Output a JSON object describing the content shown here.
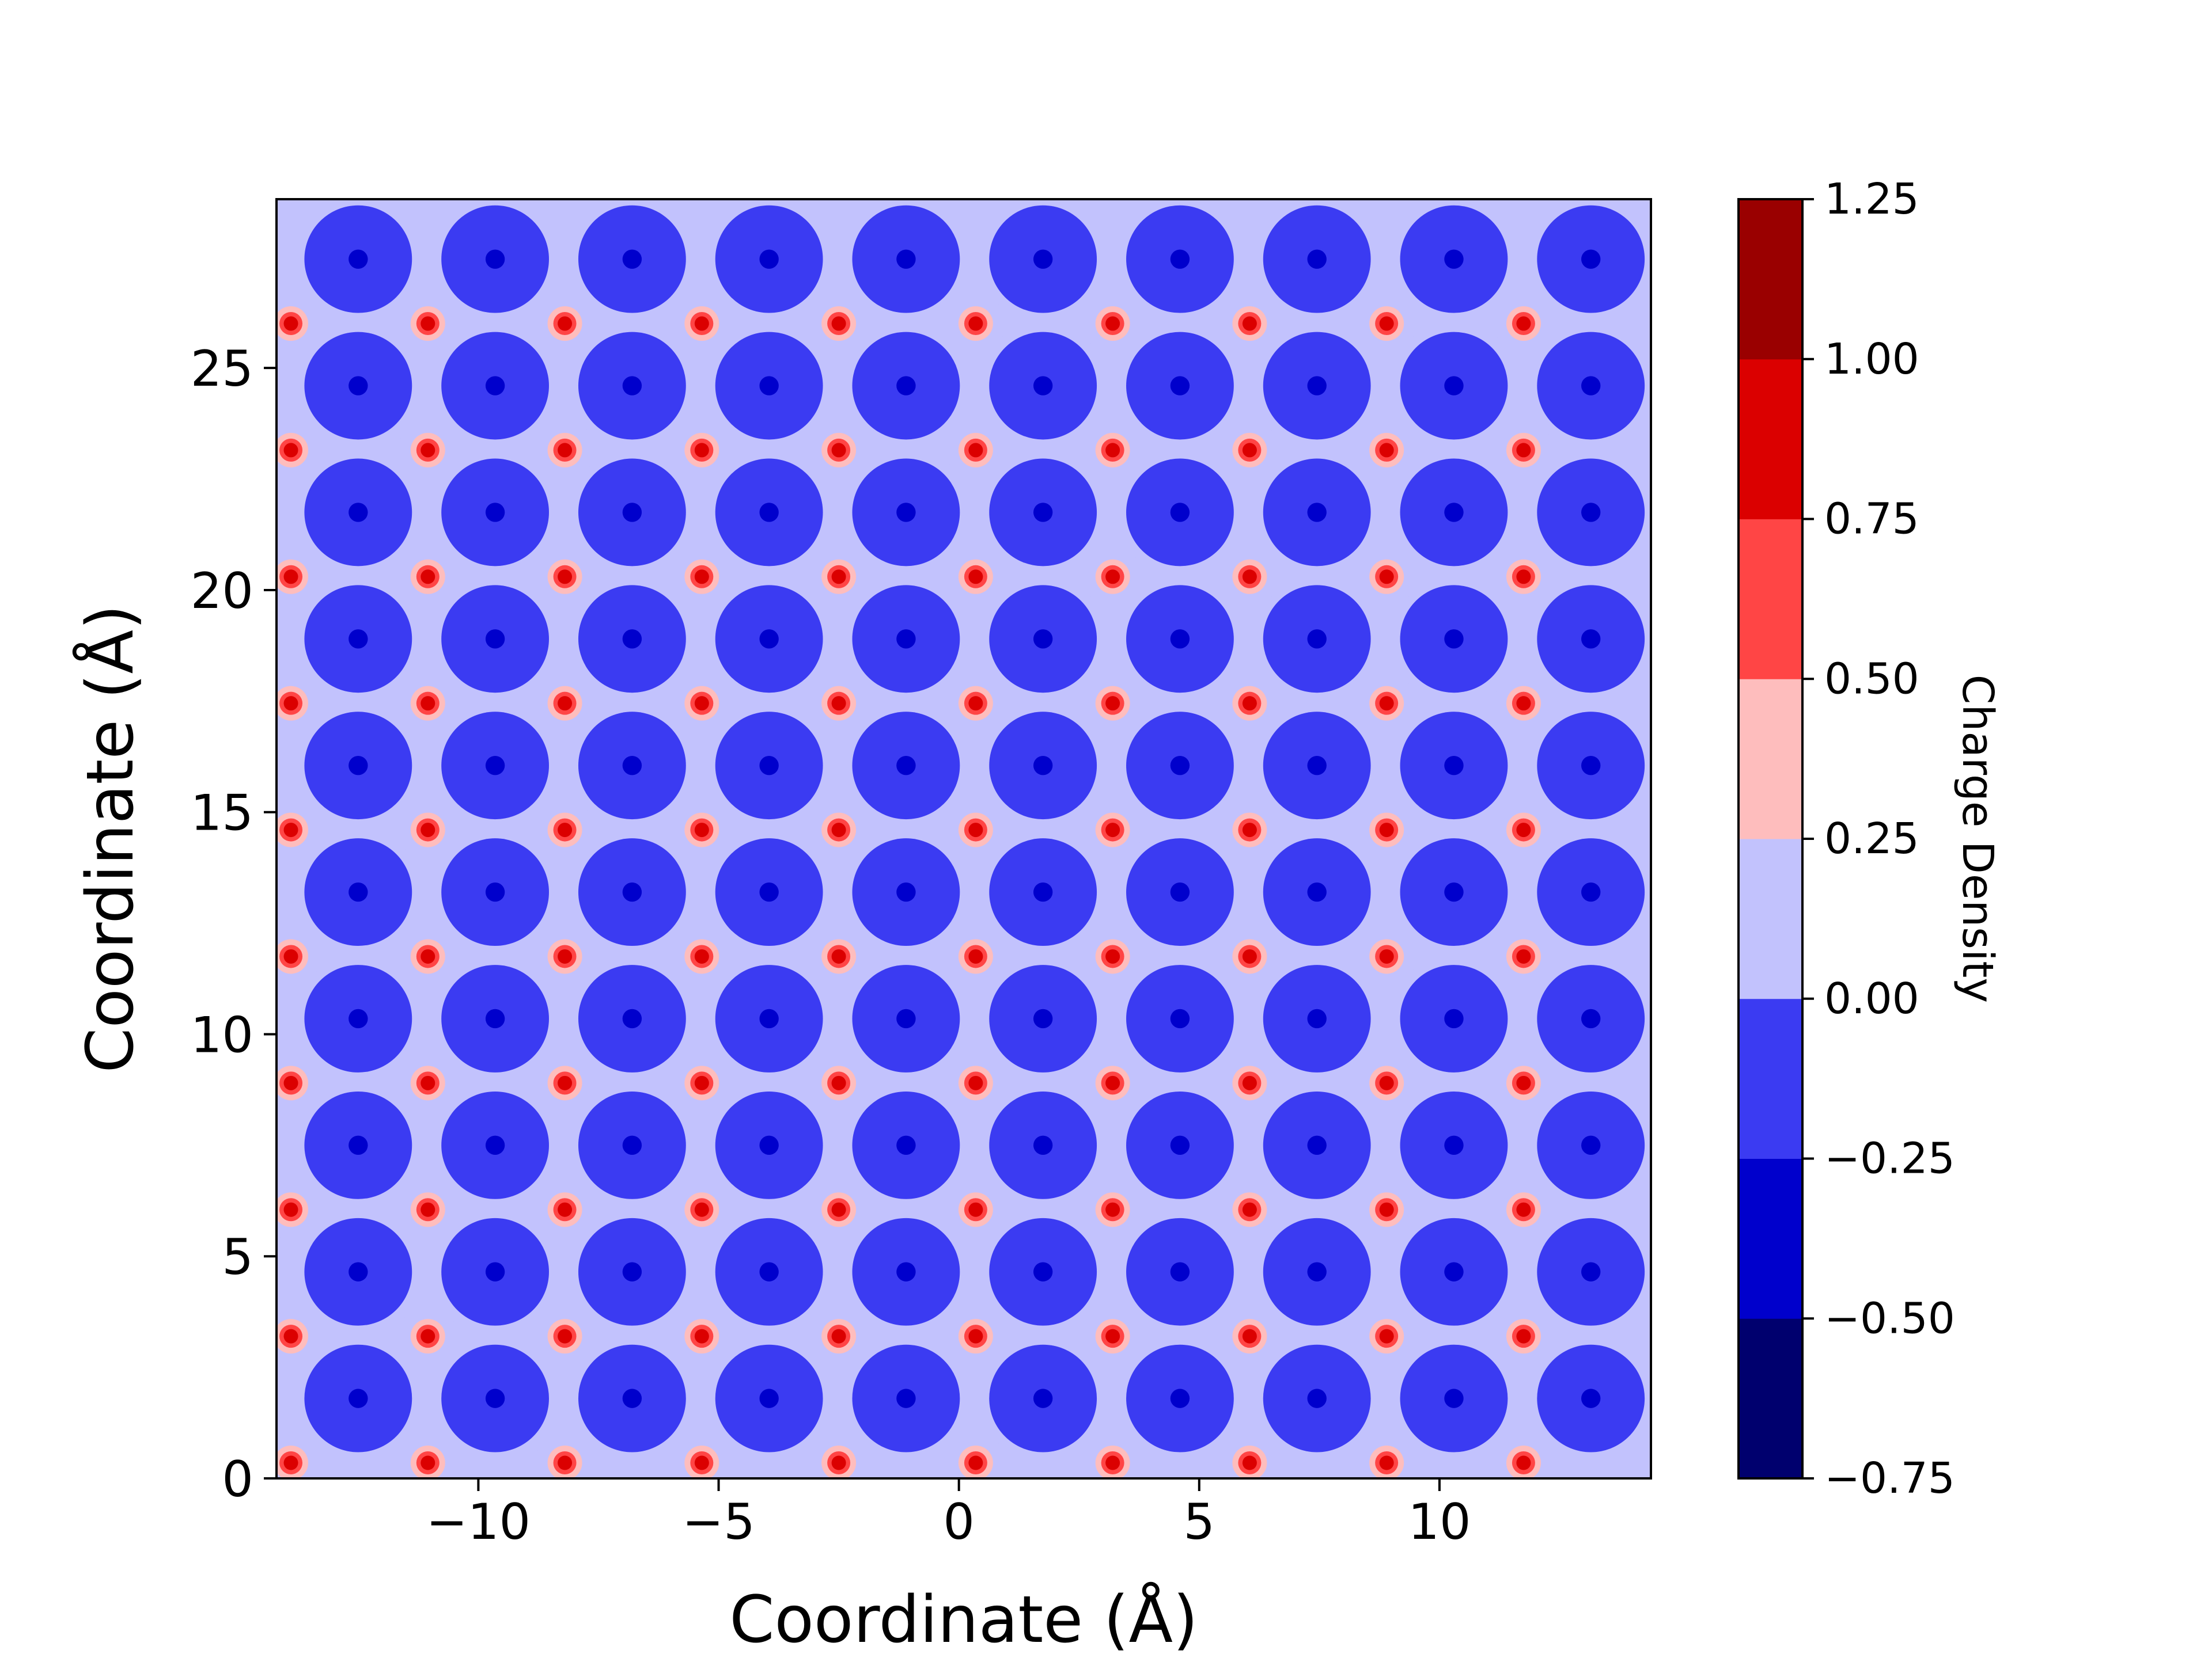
{
  "chart_data": {
    "type": "contour",
    "xlabel": "Coordinate (Å)",
    "ylabel": "Coordinate (Å)",
    "xlim": [
      -14.2,
      14.4
    ],
    "ylim": [
      0,
      28.8
    ],
    "x_ticks": [
      -10,
      -5,
      0,
      5,
      10
    ],
    "x_tick_labels": [
      "−10",
      "−5",
      "0",
      "5",
      "10"
    ],
    "y_ticks": [
      0,
      5,
      10,
      15,
      20,
      25
    ],
    "y_tick_labels": [
      "0",
      "5",
      "10",
      "15",
      "20",
      "25"
    ],
    "colorbar": {
      "label": "Charge Density",
      "levels": [
        -0.75,
        -0.5,
        -0.25,
        0.0,
        0.25,
        0.5,
        0.75,
        1.0,
        1.25
      ],
      "level_labels": [
        "−0.75",
        "−0.50",
        "−0.25",
        "0.00",
        "0.25",
        "0.50",
        "0.75",
        "1.00",
        "1.25"
      ],
      "colors": [
        "#00006e",
        "#0000cc",
        "#3b3bf2",
        "#c2c2fd",
        "#febdbd",
        "#ff4545",
        "#db0000",
        "#9a0000"
      ]
    },
    "lattice": {
      "positive_sites": {
        "x": [
          -13.9,
          -11.05,
          -8.2,
          -5.35,
          -2.5,
          0.35,
          3.2,
          6.05,
          8.9,
          11.75
        ],
        "y": [
          0.35,
          3.2,
          6.05,
          8.9,
          11.75,
          14.6,
          17.45,
          20.3,
          23.15,
          26.0
        ],
        "peak_density": 1.1
      },
      "negative_sites": {
        "x": [
          -12.5,
          -9.65,
          -6.8,
          -3.95,
          -1.1,
          1.75,
          4.6,
          7.45,
          10.3,
          13.15
        ],
        "y": [
          1.8,
          4.65,
          7.5,
          10.35,
          13.2,
          16.05,
          18.9,
          21.75,
          24.6,
          27.45
        ],
        "min_density": -0.65
      },
      "background_density": 0.1
    }
  }
}
